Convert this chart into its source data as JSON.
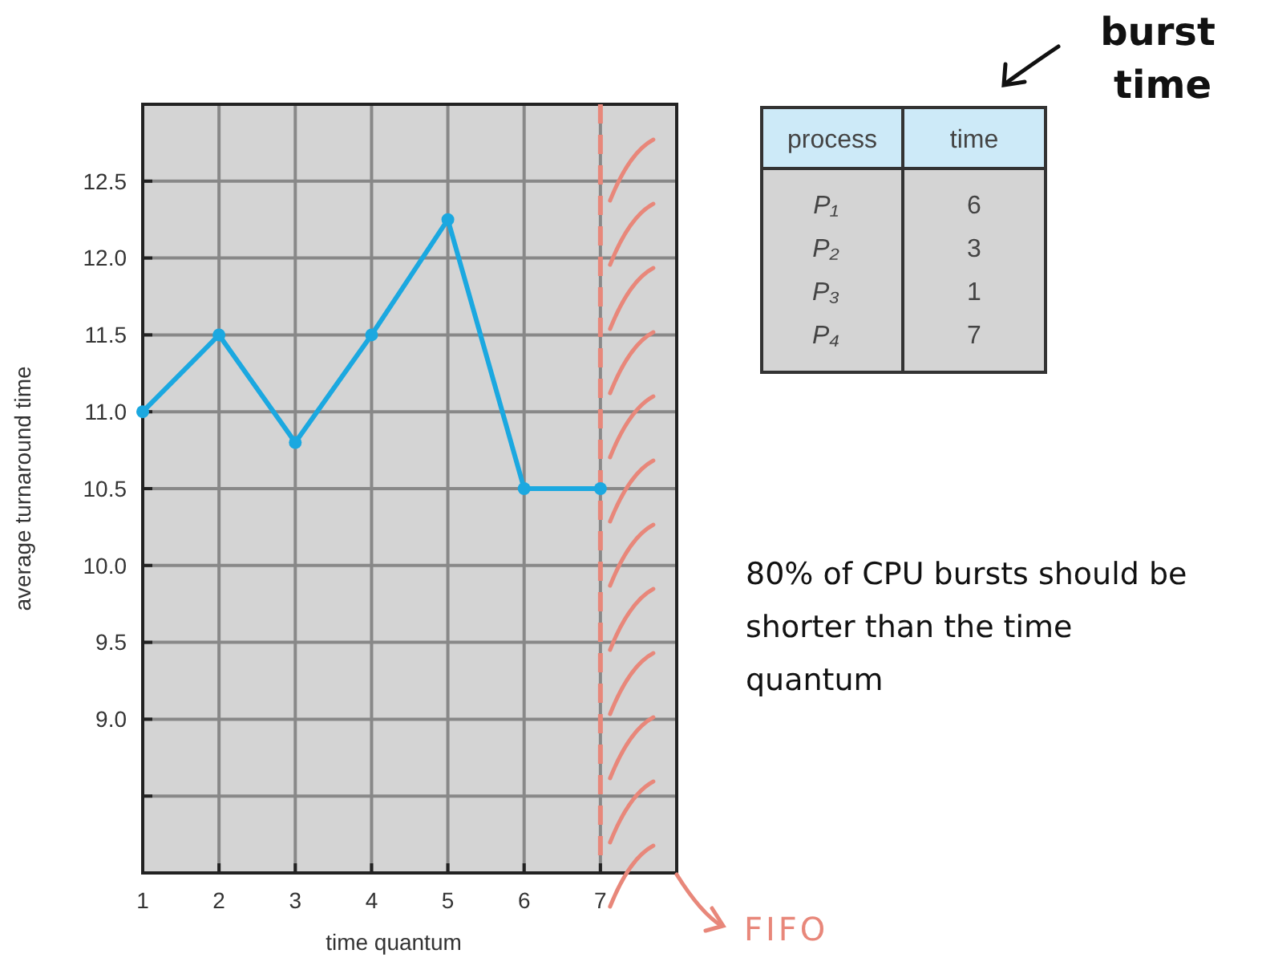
{
  "chart_data": [
    {
      "type": "line",
      "xlabel": "time quantum",
      "ylabel": "average turnaround time",
      "x": [
        1,
        2,
        3,
        4,
        5,
        6,
        7
      ],
      "series": [
        {
          "color": "#1ba8e0",
          "values": [
            11.0,
            11.5,
            10.8,
            11.5,
            12.25,
            10.5,
            10.5
          ]
        }
      ],
      "xlim": [
        1,
        8
      ],
      "xticks": [
        1,
        2,
        3,
        4,
        5,
        6,
        7
      ],
      "ylim": [
        8,
        13
      ],
      "yticks": [
        {
          "value": 8.5,
          "label": null
        },
        {
          "value": 9,
          "label": "9.0"
        },
        9.5,
        {
          "value": 10,
          "label": "10.0"
        },
        10.5,
        {
          "value": 11,
          "label": "11.0"
        },
        11.5,
        {
          "value": 12,
          "label": "12.0"
        },
        12.5
      ],
      "grid": true,
      "marker": "circle",
      "line_style": "solid",
      "ref_lines": [
        {
          "axis": "x",
          "value": 7,
          "label": "FIFO",
          "color": "#e8877a",
          "line_style": "dashed"
        }
      ],
      "annotations": [
        "80% of CPU bursts should be shorter than the time quantum"
      ]
    },
    {
      "type": "other",
      "xlabel": "process",
      "ylabel": "time",
      "categories": [
        "P₁",
        "P₂",
        "P₃",
        "P₄"
      ],
      "values": [
        6,
        3,
        1,
        7
      ],
      "data_labels": true,
      "annotations": [
        "burst time"
      ]
    }
  ]
}
